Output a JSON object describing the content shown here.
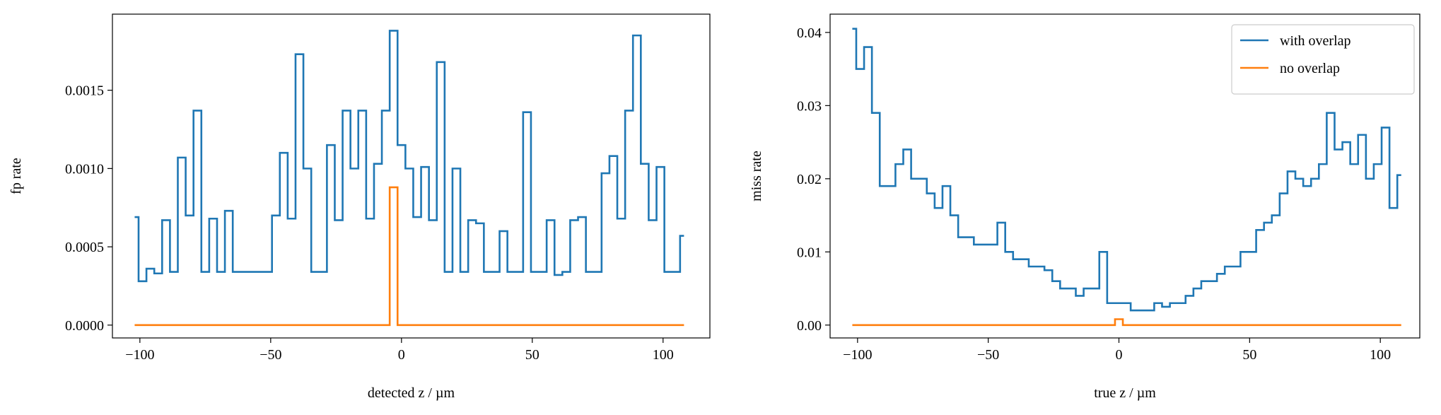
{
  "chart_data": [
    {
      "type": "line",
      "drawstyle": "steps",
      "xlabel": "detected z / µm",
      "ylabel": "fp rate",
      "xlim": [
        -110.5,
        117.9
      ],
      "ylim": [
        -8.2e-05,
        0.001986
      ],
      "xticks": [
        {
          "value": -100,
          "label": "−100"
        },
        {
          "value": -50,
          "label": "−50"
        },
        0,
        50,
        100
      ],
      "yticks": [
        {
          "value": 0,
          "label": "0.0000"
        },
        {
          "value": 0.0005,
          "label": "0.0005"
        },
        {
          "value": 0.001,
          "label": "0.0010"
        },
        {
          "value": 0.0015,
          "label": "0.0015"
        }
      ],
      "x": [
        -102,
        -99,
        -96,
        -93,
        -90,
        -87,
        -84,
        -81,
        -78,
        -75,
        -72,
        -69,
        -66,
        -63,
        -60,
        -57,
        -54,
        -51,
        -48,
        -45,
        -42,
        -39,
        -36,
        -33,
        -30,
        -27,
        -24,
        -21,
        -18,
        -15,
        -12,
        -9,
        -6,
        -3,
        0,
        3,
        6,
        9,
        12,
        15,
        18,
        21,
        24,
        27,
        30,
        33,
        36,
        39,
        42,
        45,
        48,
        51,
        54,
        57,
        60,
        63,
        66,
        69,
        72,
        75,
        78,
        81,
        84,
        87,
        90,
        93,
        96,
        99,
        102,
        105,
        108
      ],
      "series": [
        {
          "color": "#1f77b4",
          "values": [
            0.00069,
            0.00028,
            0.00036,
            0.00033,
            0.00067,
            0.00034,
            0.00107,
            0.0007,
            0.00137,
            0.00034,
            0.00068,
            0.00034,
            0.00073,
            0.00034,
            0.00034,
            0.00034,
            0.00034,
            0.00034,
            0.0007,
            0.0011,
            0.00068,
            0.00173,
            0.001,
            0.00034,
            0.00034,
            0.00115,
            0.00067,
            0.00137,
            0.001,
            0.00137,
            0.00068,
            0.00103,
            0.00137,
            0.00188,
            0.00115,
            0.001,
            0.00069,
            0.00101,
            0.00067,
            0.00168,
            0.00034,
            0.001,
            0.00034,
            0.00067,
            0.00065,
            0.00034,
            0.00034,
            0.0006,
            0.00034,
            0.00034,
            0.00136,
            0.00034,
            0.00034,
            0.00067,
            0.00032,
            0.00034,
            0.00067,
            0.00069,
            0.00034,
            0.00034,
            0.00097,
            0.00108,
            0.00068,
            0.00137,
            0.00185,
            0.00103,
            0.00067,
            0.00101,
            0.00034,
            0.00034,
            0.00057
          ]
        },
        {
          "color": "#ff7f0e",
          "values": [
            0,
            0,
            0,
            0,
            0,
            0,
            0,
            0,
            0,
            0,
            0,
            0,
            0,
            0,
            0,
            0,
            0,
            0,
            0,
            0,
            0,
            0,
            0,
            0,
            0,
            0,
            0,
            0,
            0,
            0,
            0,
            0,
            0,
            0.00088,
            0,
            0,
            0,
            0,
            0,
            0,
            0,
            0,
            0,
            0,
            0,
            0,
            0,
            0,
            0,
            0,
            0,
            0,
            0,
            0,
            0,
            0,
            0,
            0,
            0,
            0,
            0,
            0,
            0,
            0,
            0,
            0,
            0,
            0,
            0,
            0,
            0
          ]
        }
      ]
    },
    {
      "type": "line",
      "drawstyle": "steps",
      "xlabel": "true z / µm",
      "ylabel": "miss rate",
      "legend": "upper right",
      "xlim": [
        -110.5,
        115.1
      ],
      "ylim": [
        -0.00176,
        0.0425
      ],
      "xticks": [
        {
          "value": -100,
          "label": "−100"
        },
        {
          "value": -50,
          "label": "−50"
        },
        0,
        50,
        100
      ],
      "yticks": [
        {
          "value": 0,
          "label": "0.00"
        },
        0.01,
        0.02,
        0.03,
        0.04
      ],
      "x": [
        -102,
        -99,
        -96,
        -93,
        -90,
        -87,
        -84,
        -81,
        -78,
        -75,
        -72,
        -69,
        -66,
        -63,
        -60,
        -57,
        -54,
        -51,
        -48,
        -45,
        -42,
        -39,
        -36,
        -33,
        -30,
        -27,
        -24,
        -21,
        -18,
        -15,
        -12,
        -9,
        -6,
        -3,
        0,
        3,
        6,
        9,
        12,
        15,
        18,
        21,
        24,
        27,
        30,
        33,
        36,
        39,
        42,
        45,
        48,
        51,
        54,
        57,
        60,
        63,
        66,
        69,
        72,
        75,
        78,
        81,
        84,
        87,
        90,
        93,
        96,
        99,
        102,
        105,
        108
      ],
      "series": [
        {
          "name": "with overlap",
          "color": "#1f77b4",
          "values": [
            0.0405,
            0.035,
            0.038,
            0.029,
            0.019,
            0.019,
            0.022,
            0.024,
            0.02,
            0.02,
            0.018,
            0.016,
            0.019,
            0.015,
            0.012,
            0.012,
            0.011,
            0.011,
            0.011,
            0.014,
            0.01,
            0.009,
            0.009,
            0.008,
            0.008,
            0.0075,
            0.006,
            0.005,
            0.005,
            0.004,
            0.005,
            0.005,
            0.01,
            0.003,
            0.003,
            0.003,
            0.002,
            0.002,
            0.002,
            0.003,
            0.0025,
            0.003,
            0.003,
            0.004,
            0.005,
            0.006,
            0.006,
            0.007,
            0.008,
            0.008,
            0.01,
            0.01,
            0.013,
            0.014,
            0.015,
            0.018,
            0.021,
            0.02,
            0.019,
            0.02,
            0.022,
            0.029,
            0.024,
            0.025,
            0.022,
            0.026,
            0.02,
            0.022,
            0.027,
            0.016,
            0.0205
          ]
        },
        {
          "name": "no overlap",
          "color": "#ff7f0e",
          "values": [
            0,
            0,
            0,
            0,
            0,
            0,
            0,
            0,
            0,
            0,
            0,
            0,
            0,
            0,
            0,
            0,
            0,
            0,
            0,
            0,
            0,
            0,
            0,
            0,
            0,
            0,
            0,
            0,
            0,
            0,
            0,
            0,
            0,
            0,
            0.0008,
            0,
            0,
            0,
            0,
            0,
            0,
            0,
            0,
            0,
            0,
            0,
            0,
            0,
            0,
            0,
            0,
            0,
            0,
            0,
            0,
            0,
            0,
            0,
            0,
            0,
            0,
            0,
            0,
            0,
            0,
            0,
            0,
            0,
            0,
            0,
            0
          ]
        }
      ]
    }
  ]
}
